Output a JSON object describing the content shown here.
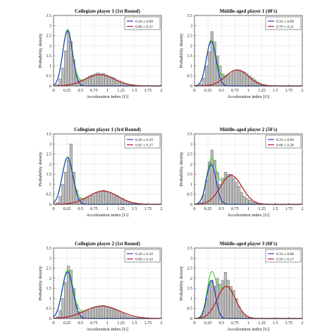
{
  "figure_bg": "#ffffff",
  "colors": {
    "bar_fill": "#bdbdbd",
    "bar_stroke": "#555555",
    "fit1": "#1f3fbf",
    "fit2": "#c0182a",
    "sum": "#4fd23a",
    "grid": "#e6e6e6"
  },
  "chart_data": [
    {
      "type": "bar",
      "title": "Collegiate player 1 (1st Round)",
      "xlabel": "Acceleration index [G]",
      "ylabel": "Probability density",
      "xlim": [
        0,
        2
      ],
      "ylim": [
        0,
        3.5
      ],
      "xticks": [
        "0",
        "0.25",
        "0.5",
        "0.75",
        "1",
        "1.25",
        "1.5",
        "1.75",
        "2"
      ],
      "yticks": [
        "0",
        "0.5",
        "1",
        "1.5",
        "2",
        "2.5",
        "3",
        "3.5"
      ],
      "bin_width": 0.05,
      "bins": [
        0.0,
        0.05,
        0.1,
        0.15,
        0.2,
        0.25,
        0.3,
        0.35,
        0.4,
        0.45,
        0.5,
        0.55,
        0.6,
        0.65,
        0.7,
        0.75,
        0.8,
        0.85,
        0.9,
        0.95,
        1.0,
        1.05,
        1.1,
        1.15,
        1.2,
        1.25,
        1.3,
        1.35,
        1.4,
        1.45,
        1.5,
        1.55,
        1.6,
        1.65,
        1.7,
        1.75,
        1.8,
        1.85,
        1.9,
        1.95
      ],
      "density": [
        0.02,
        0.08,
        0.35,
        0.9,
        1.75,
        2.7,
        2.2,
        1.3,
        0.55,
        0.3,
        0.28,
        0.32,
        0.42,
        0.5,
        0.55,
        0.6,
        0.65,
        0.6,
        0.62,
        0.55,
        0.5,
        0.45,
        0.4,
        0.3,
        0.25,
        0.18,
        0.12,
        0.08,
        0.05,
        0.03,
        0.02,
        0.01,
        0.01,
        0,
        0,
        0,
        0,
        0,
        0,
        0
      ],
      "series": [
        {
          "name": "0.26 ± 0.09",
          "mean": 0.26,
          "sd": 0.09,
          "weight": 0.62
        },
        {
          "name": "0.86 ± 0.27",
          "mean": 0.86,
          "sd": 0.27,
          "weight": 0.38
        }
      ],
      "legend": "top-right",
      "grid": true
    },
    {
      "type": "bar",
      "title": "Middle-aged player 1 (40's)",
      "xlabel": "Acceleration index [G]",
      "ylabel": "Probability density",
      "xlim": [
        0,
        2
      ],
      "ylim": [
        0,
        3.5
      ],
      "xticks": [
        "0",
        "0.25",
        "0.5",
        "0.75",
        "1",
        "1.25",
        "1.5",
        "1.75",
        "2"
      ],
      "yticks": [
        "0",
        "0.5",
        "1",
        "1.5",
        "2",
        "2.5",
        "3",
        "3.5"
      ],
      "bin_width": 0.05,
      "bins": [
        0.0,
        0.05,
        0.1,
        0.15,
        0.2,
        0.25,
        0.3,
        0.35,
        0.4,
        0.45,
        0.5,
        0.55,
        0.6,
        0.65,
        0.7,
        0.75,
        0.8,
        0.85,
        0.9,
        0.95,
        1.0,
        1.05,
        1.1,
        1.15,
        1.2,
        1.25,
        1.3,
        1.35,
        1.4,
        1.45,
        1.5,
        1.55,
        1.6,
        1.65,
        1.7,
        1.75,
        1.8,
        1.85,
        1.9,
        1.95
      ],
      "density": [
        0,
        0.02,
        0.1,
        0.4,
        1.0,
        1.7,
        2.7,
        2.2,
        1.5,
        1.0,
        0.6,
        0.5,
        0.55,
        0.6,
        0.7,
        0.75,
        0.8,
        0.75,
        0.7,
        0.6,
        0.5,
        0.4,
        0.3,
        0.2,
        0.12,
        0.08,
        0.05,
        0.03,
        0.02,
        0.01,
        0,
        0,
        0,
        0,
        0,
        0,
        0,
        0,
        0,
        0
      ],
      "series": [
        {
          "name": "0.31 ± 0.09",
          "mean": 0.31,
          "sd": 0.09,
          "weight": 0.5
        },
        {
          "name": "0.79 ± 0.21",
          "mean": 0.79,
          "sd": 0.21,
          "weight": 0.42
        }
      ],
      "legend": "top-right",
      "grid": true
    },
    {
      "type": "bar",
      "title": "Collegiate player 1 (3rd Round)",
      "xlabel": "Acceleration index [G]",
      "ylabel": "Probability density",
      "xlim": [
        0,
        2
      ],
      "ylim": [
        0,
        3.5
      ],
      "xticks": [
        "0",
        "0.25",
        "0.5",
        "0.75",
        "1",
        "1.25",
        "1.5",
        "1.75",
        "2"
      ],
      "yticks": [
        "0",
        "0.5",
        "1",
        "1.5",
        "2",
        "2.5",
        "3",
        "3.5"
      ],
      "bin_width": 0.05,
      "bins": [
        0.0,
        0.05,
        0.1,
        0.15,
        0.2,
        0.25,
        0.3,
        0.35,
        0.4,
        0.45,
        0.5,
        0.55,
        0.6,
        0.65,
        0.7,
        0.75,
        0.8,
        0.85,
        0.9,
        0.95,
        1.0,
        1.05,
        1.1,
        1.15,
        1.2,
        1.25,
        1.3,
        1.35,
        1.4,
        1.45,
        1.5,
        1.55,
        1.6,
        1.65,
        1.7,
        1.75,
        1.8,
        1.85,
        1.9,
        1.95
      ],
      "density": [
        0.02,
        0.1,
        0.4,
        1.0,
        1.6,
        2.2,
        3.0,
        1.6,
        0.7,
        0.3,
        0.25,
        0.3,
        0.35,
        0.4,
        0.45,
        0.55,
        0.6,
        0.65,
        0.7,
        0.65,
        0.6,
        0.55,
        0.5,
        0.45,
        0.35,
        0.3,
        0.22,
        0.15,
        0.1,
        0.06,
        0.03,
        0.02,
        0.01,
        0,
        0,
        0,
        0,
        0,
        0,
        0
      ],
      "series": [
        {
          "name": "0.26 ± 0.10",
          "mean": 0.26,
          "sd": 0.1,
          "weight": 0.58
        },
        {
          "name": "0.92 ± 0.27",
          "mean": 0.92,
          "sd": 0.27,
          "weight": 0.45
        }
      ],
      "legend": "top-right",
      "grid": true
    },
    {
      "type": "bar",
      "title": "Middle-aged player 2 (50's)",
      "xlabel": "Acceleration index [G]",
      "ylabel": "Probability density",
      "xlim": [
        0,
        2
      ],
      "ylim": [
        0,
        3.5
      ],
      "xticks": [
        "0",
        "0.25",
        "0.5",
        "0.75",
        "1",
        "1.25",
        "1.5",
        "1.75",
        "2"
      ],
      "yticks": [
        "0",
        "0.5",
        "1",
        "1.5",
        "2",
        "2.5",
        "3",
        "3.5"
      ],
      "bin_width": 0.05,
      "bins": [
        0.0,
        0.05,
        0.1,
        0.15,
        0.2,
        0.25,
        0.3,
        0.35,
        0.4,
        0.45,
        0.5,
        0.55,
        0.6,
        0.65,
        0.7,
        0.75,
        0.8,
        0.85,
        0.9,
        0.95,
        1.0,
        1.05,
        1.1,
        1.15,
        1.2,
        1.25,
        1.3,
        1.35,
        1.4,
        1.45,
        1.5,
        1.55,
        1.6,
        1.65,
        1.7,
        1.75,
        1.8,
        1.85,
        1.9,
        1.95
      ],
      "density": [
        0,
        0.02,
        0.1,
        0.5,
        1.2,
        2.1,
        2.7,
        2.2,
        1.6,
        1.0,
        1.3,
        1.6,
        1.5,
        1.5,
        1.3,
        1.1,
        0.9,
        0.6,
        0.4,
        0.3,
        0.2,
        0.12,
        0.08,
        0.05,
        0.03,
        0.02,
        0.01,
        0.01,
        0,
        0,
        0,
        0,
        0,
        0,
        0,
        0,
        0,
        0,
        0,
        0
      ],
      "series": [
        {
          "name": "0.31 ± 0.09",
          "mean": 0.31,
          "sd": 0.09,
          "weight": 0.45
        },
        {
          "name": "0.68 ± 0.20",
          "mean": 0.68,
          "sd": 0.2,
          "weight": 0.72
        }
      ],
      "legend": "top-right",
      "grid": true
    },
    {
      "type": "bar",
      "title": "Collegiate player 2 (1st Round)",
      "xlabel": "Acceleration index [G]",
      "ylabel": "Probability density",
      "xlim": [
        0,
        2
      ],
      "ylim": [
        0,
        3.5
      ],
      "xticks": [
        "0",
        "0.25",
        "0.5",
        "0.75",
        "1",
        "1.25",
        "1.5",
        "1.75",
        "2"
      ],
      "yticks": [
        "0",
        "0.5",
        "1",
        "1.5",
        "2",
        "2.5",
        "3",
        "3.5"
      ],
      "bin_width": 0.05,
      "bins": [
        0.0,
        0.05,
        0.1,
        0.15,
        0.2,
        0.25,
        0.3,
        0.35,
        0.4,
        0.45,
        0.5,
        0.55,
        0.6,
        0.65,
        0.7,
        0.75,
        0.8,
        0.85,
        0.9,
        0.95,
        1.0,
        1.05,
        1.1,
        1.15,
        1.2,
        1.25,
        1.3,
        1.35,
        1.4,
        1.45,
        1.5,
        1.55,
        1.6,
        1.65,
        1.7,
        1.75,
        1.8,
        1.85,
        1.9,
        1.95
      ],
      "density": [
        0.02,
        0.1,
        0.4,
        1.0,
        1.8,
        2.6,
        2.4,
        1.5,
        0.7,
        0.35,
        0.3,
        0.32,
        0.38,
        0.42,
        0.5,
        0.55,
        0.6,
        0.62,
        0.65,
        0.6,
        0.55,
        0.5,
        0.45,
        0.4,
        0.32,
        0.25,
        0.18,
        0.12,
        0.08,
        0.05,
        0.03,
        0.02,
        0.01,
        0,
        0,
        0,
        0,
        0,
        0,
        0
      ],
      "series": [
        {
          "name": "0.26 ± 0.10",
          "mean": 0.26,
          "sd": 0.1,
          "weight": 0.58
        },
        {
          "name": "0.90 ± 0.32",
          "mean": 0.9,
          "sd": 0.32,
          "weight": 0.5
        }
      ],
      "legend": "top-right",
      "grid": true
    },
    {
      "type": "bar",
      "title": "Middle-aged player 3 (60's)",
      "xlabel": "Acceleration index [G]",
      "ylabel": "Probability density",
      "xlim": [
        0,
        2
      ],
      "ylim": [
        0,
        3.5
      ],
      "xticks": [
        "0",
        "0.25",
        "0.5",
        "0.75",
        "1",
        "1.25",
        "1.5",
        "1.75",
        "2"
      ],
      "yticks": [
        "0",
        "0.5",
        "1",
        "1.5",
        "2",
        "2.5",
        "3",
        "3.5"
      ],
      "bin_width": 0.05,
      "bins": [
        0.0,
        0.05,
        0.1,
        0.15,
        0.2,
        0.25,
        0.3,
        0.35,
        0.4,
        0.45,
        0.5,
        0.55,
        0.6,
        0.65,
        0.7,
        0.75,
        0.8,
        0.85,
        0.9,
        0.95,
        1.0,
        1.05,
        1.1,
        1.15,
        1.2,
        1.25,
        1.3,
        1.35,
        1.4,
        1.45,
        1.5,
        1.55,
        1.6,
        1.65,
        1.7,
        1.75,
        1.8,
        1.85,
        1.9,
        1.95
      ],
      "density": [
        0,
        0.02,
        0.1,
        0.4,
        1.0,
        1.7,
        1.9,
        1.6,
        2.0,
        1.7,
        1.9,
        2.3,
        1.9,
        1.6,
        1.4,
        1.0,
        0.6,
        0.35,
        0.2,
        0.1,
        0.05,
        0.03,
        0.02,
        0.01,
        0,
        0,
        0,
        0,
        0,
        0,
        0,
        0,
        0,
        0,
        0,
        0,
        0,
        0,
        0,
        0
      ],
      "series": [
        {
          "name": "0.31 ± 0.08",
          "mean": 0.31,
          "sd": 0.08,
          "weight": 0.38
        },
        {
          "name": "0.59 ± 0.17",
          "mean": 0.59,
          "sd": 0.17,
          "weight": 0.68
        }
      ],
      "legend": "top-right",
      "grid": true
    }
  ]
}
